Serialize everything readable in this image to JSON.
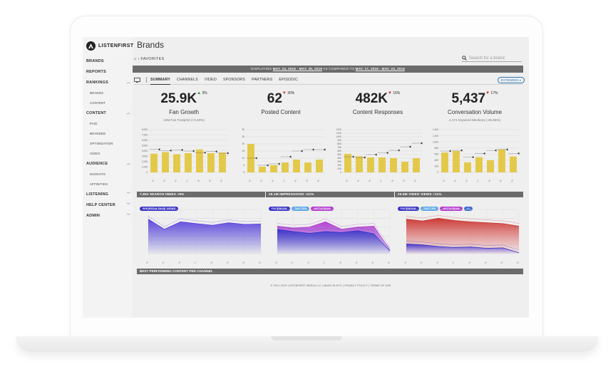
{
  "app": {
    "logo_text": "LISTENFIRST",
    "page_title": "Brands"
  },
  "sidebar": {
    "items": [
      {
        "label": "BRANDS",
        "kind": "top"
      },
      {
        "label": "REPORTS",
        "kind": "top"
      },
      {
        "label": "RANKINGS",
        "kind": "top",
        "chevron": "up"
      },
      {
        "label": "BRANDS",
        "kind": "sub"
      },
      {
        "label": "CONTENT",
        "kind": "sub"
      },
      {
        "label": "CONTENT",
        "kind": "top",
        "chevron": "up"
      },
      {
        "label": "PAID",
        "kind": "sub"
      },
      {
        "label": "BRANDED",
        "kind": "sub"
      },
      {
        "label": "OPTIMIZATION",
        "kind": "sub"
      },
      {
        "label": "VIDEO",
        "kind": "sub"
      },
      {
        "label": "AUDIENCE",
        "kind": "top",
        "chevron": "up"
      },
      {
        "label": "INSIGHTS",
        "kind": "sub"
      },
      {
        "label": "AFFINITIES",
        "kind": "sub"
      },
      {
        "label": "LISTENING",
        "kind": "top",
        "chevron": "down"
      },
      {
        "label": "HELP CENTER",
        "kind": "top",
        "chevron": "down"
      },
      {
        "label": "ADMIN",
        "kind": "top",
        "chevron": "down"
      }
    ]
  },
  "breadcrumb": {
    "home_icon": "home-icon",
    "label": "FAVORITES"
  },
  "search": {
    "placeholder": "Search for a brand"
  },
  "date_bar": {
    "prefix": "DISPLAYING",
    "range": "MAY. 24, 2019 - MAY. 30, 2019",
    "middle": "AS COMPARED TO",
    "compare_range": "MAY. 17, 2019 - MAY. 23, 2019"
  },
  "tabs": [
    "SUMMARY",
    "CHANNELS",
    "VIDEO",
    "SPONSORS",
    "PARTNERS",
    "EPISODIC"
  ],
  "extended_label": "EXTENDED ▾",
  "kpis": [
    {
      "value": "25.9K",
      "delta": "3%",
      "direction": "up",
      "label": "Fan Growth",
      "sub": "13M Fan Footprint (+0.20%)"
    },
    {
      "value": "62",
      "delta": "30%",
      "direction": "down",
      "label": "Posted Content",
      "sub": ""
    },
    {
      "value": "482K",
      "delta": "15%",
      "direction": "down",
      "label": "Content Responses",
      "sub": ""
    },
    {
      "value": "5,437",
      "delta": "17%",
      "direction": "down",
      "label": "Conversation Volume",
      "sub": "4,174 Keyword Mentions (-25.56%)"
    }
  ],
  "chart_data": [
    {
      "type": "bar",
      "y_ticks": [
        "8,000",
        "7,000",
        "6,000",
        "5,000",
        "4,000",
        "3,000",
        "2,000",
        "1,000",
        "0"
      ],
      "ylim": [
        0,
        8000
      ],
      "values": [
        3500,
        3800,
        3400,
        3600,
        4300,
        3600,
        3700
      ],
      "prior": [
        4300,
        4100,
        4200,
        4000,
        3700,
        3900,
        3600
      ],
      "color": "#e3c94a"
    },
    {
      "type": "bar",
      "y_ticks": [
        "30",
        "25",
        "20",
        "15",
        "10",
        "5",
        "0"
      ],
      "ylim": [
        0,
        30
      ],
      "values": [
        20,
        4,
        5,
        7,
        9,
        7,
        9
      ],
      "prior": [
        10,
        5,
        6,
        11,
        15,
        16,
        16
      ],
      "color": "#e3c94a"
    },
    {
      "type": "bar",
      "y_ticks": [
        "120K",
        "110K",
        "100K",
        "90K",
        "80K",
        "70K",
        "60K",
        "50K",
        "40K",
        "30K",
        "20K",
        "10K",
        "0"
      ],
      "ylim": [
        0,
        120000
      ],
      "values": [
        52000,
        45000,
        42000,
        42000,
        40000,
        30000,
        40000
      ],
      "prior": [
        44000,
        42000,
        50000,
        55000,
        62000,
        72000,
        82000
      ],
      "color": "#e3c94a"
    },
    {
      "type": "bar",
      "y_ticks": [
        "1,400",
        "1,200",
        "1,000",
        "800",
        "600",
        "400",
        "200",
        "0"
      ],
      "ylim": [
        0,
        1400
      ],
      "values": [
        650,
        700,
        330,
        500,
        400,
        750,
        520
      ],
      "prior": [
        700,
        720,
        500,
        620,
        720,
        750,
        620
      ],
      "color": "#e3c94a"
    }
  ],
  "panels": [
    {
      "title": "7,804 SEARCH INDEX",
      "delta": "+5%",
      "pills": [
        {
          "label": "WIKIPEDIA PAGE VIEWS",
          "color": "#3a34c9"
        }
      ]
    },
    {
      "title": "25.1M IMPRESSIONS",
      "delta": "+21%",
      "pills": [
        {
          "label": "FACEBOOK",
          "color": "#3a34c9"
        },
        {
          "label": "TWITTER",
          "color": "#5aa7e6"
        },
        {
          "label": "INSTAGRAM",
          "color": "#b43ad0"
        }
      ]
    },
    {
      "title": "25.8M VIDEO VIEWS",
      "delta": "+11%",
      "pills": [
        {
          "label": "FACEBOOK",
          "color": "#3a34c9"
        },
        {
          "label": "TWITTER",
          "color": "#5aa7e6"
        },
        {
          "label": "INSTAGRAM",
          "color": "#b43ad0"
        },
        {
          "label": "+1",
          "color": "#3a6ad0"
        }
      ]
    }
  ],
  "bottom_bar": "BEST PERFORMING CONTENT PER CHANNEL",
  "footer": "© 2012-2019 LISTENFIRST MEDIA LLC | MADE IN NYC | PRIVACY POLICY | TERMS OF USE"
}
